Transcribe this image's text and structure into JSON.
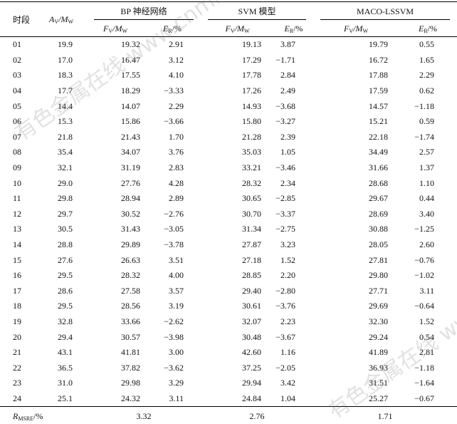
{
  "table": {
    "header": {
      "period": "时段",
      "actual": [
        "A",
        "V",
        "/M",
        "W"
      ],
      "groups": [
        "BP 神经网络",
        "SVM 模型",
        "MACO-LSSVM"
      ],
      "columns": [
        [
          "F",
          "V",
          "/M",
          "W"
        ],
        [
          "E",
          "R",
          "/%"
        ]
      ]
    },
    "rows": [
      [
        "01",
        "19.9",
        "19.32",
        "2.91",
        "19.13",
        "3.87",
        "19.79",
        "0.55"
      ],
      [
        "02",
        "17.0",
        "16.47",
        "3.12",
        "17.29",
        "−1.71",
        "16.72",
        "1.65"
      ],
      [
        "03",
        "18.3",
        "17.55",
        "4.10",
        "17.78",
        "2.84",
        "17.88",
        "2.29"
      ],
      [
        "04",
        "17.7",
        "18.29",
        "−3.33",
        "17.26",
        "2.49",
        "17.59",
        "0.62"
      ],
      [
        "05",
        "14.4",
        "14.07",
        "2.29",
        "14.93",
        "−3.68",
        "14.57",
        "−1.18"
      ],
      [
        "06",
        "15.3",
        "15.86",
        "−3.66",
        "15.80",
        "−3.27",
        "15.21",
        "0.59"
      ],
      [
        "07",
        "21.8",
        "21.43",
        "1.70",
        "21.28",
        "2.39",
        "22.18",
        "−1.74"
      ],
      [
        "08",
        "35.4",
        "34.07",
        "3.76",
        "35.03",
        "1.05",
        "34.49",
        "2.57"
      ],
      [
        "09",
        "32.1",
        "31.19",
        "2.83",
        "33.21",
        "−3.46",
        "31.66",
        "1.37"
      ],
      [
        "10",
        "29.0",
        "27.76",
        "4.28",
        "28.32",
        "2.34",
        "28.68",
        "1.10"
      ],
      [
        "11",
        "29.8",
        "28.94",
        "2.89",
        "30.65",
        "−2.85",
        "29.67",
        "0.44"
      ],
      [
        "12",
        "29.7",
        "30.52",
        "−2.76",
        "30.70",
        "−3.37",
        "28.69",
        "3.40"
      ],
      [
        "13",
        "30.5",
        "31.43",
        "−3.05",
        "31.34",
        "−2.75",
        "30.88",
        "−1.25"
      ],
      [
        "14",
        "28.8",
        "29.89",
        "−3.78",
        "27.87",
        "3.23",
        "28.05",
        "2.60"
      ],
      [
        "15",
        "27.6",
        "26.63",
        "3.51",
        "27.18",
        "1.52",
        "27.81",
        "−0.76"
      ],
      [
        "16",
        "29.5",
        "28.32",
        "4.00",
        "28.85",
        "2.20",
        "29.80",
        "−1.02"
      ],
      [
        "17",
        "28.6",
        "27.58",
        "3.57",
        "29.40",
        "−2.80",
        "27.71",
        "3.11"
      ],
      [
        "18",
        "29.5",
        "28.56",
        "3.19",
        "30.61",
        "−3.76",
        "29.69",
        "−0.64"
      ],
      [
        "19",
        "32.8",
        "33.66",
        "−2.62",
        "32.07",
        "2.23",
        "32.30",
        "1.52"
      ],
      [
        "20",
        "29.4",
        "30.57",
        "−3.98",
        "30.48",
        "−3.67",
        "29.24",
        "0.54"
      ],
      [
        "21",
        "43.1",
        "41.81",
        "3.00",
        "42.60",
        "1.16",
        "41.89",
        "2.81"
      ],
      [
        "22",
        "36.5",
        "37.82",
        "−3.62",
        "37.25",
        "−2.05",
        "36.93",
        "−1.18"
      ],
      [
        "23",
        "31.0",
        "29.98",
        "3.29",
        "29.94",
        "3.42",
        "31.51",
        "−1.64"
      ],
      [
        "24",
        "25.1",
        "24.32",
        "3.11",
        "24.84",
        "1.04",
        "25.27",
        "−0.67"
      ]
    ],
    "footer": {
      "label": [
        "R",
        "MSRE",
        "/%"
      ],
      "values": [
        "3.32",
        "2.76",
        "1.71"
      ]
    }
  },
  "watermark": "有色金属在线 www.cnmnol.com"
}
